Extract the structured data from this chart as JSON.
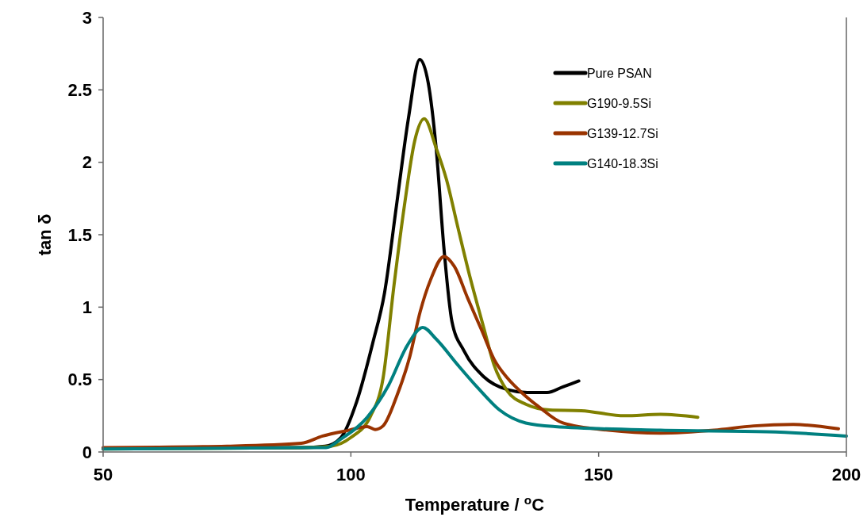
{
  "chart_data": {
    "type": "line",
    "xlabel": "Temperature / $^{o}$C",
    "ylabel": "tan δ",
    "xlim": [
      50,
      200
    ],
    "ylim": [
      0,
      3
    ],
    "xticks": [
      50,
      100,
      150,
      200
    ],
    "yticks": [
      0,
      0.5,
      1,
      1.5,
      2,
      2.5,
      3
    ],
    "grid": false,
    "legend": "top right",
    "marker": "none",
    "line_style": "solid",
    "series": [
      {
        "name": "Pure PSAN",
        "color": "#000000",
        "x": [
          50,
          90,
          94.8,
          98,
          101.2,
          104.4,
          106.8,
          109.2,
          111.6,
          113.9,
          115.6,
          117.2,
          118.8,
          120.4,
          122.8,
          126.8,
          131.6,
          135.6,
          139.6,
          142.8,
          146
        ],
        "values": [
          0.025,
          0.03,
          0.04,
          0.1,
          0.35,
          0.75,
          1.1,
          1.7,
          2.3,
          2.71,
          2.55,
          2.1,
          1.4,
          0.9,
          0.7,
          0.52,
          0.43,
          0.41,
          0.41,
          0.45,
          0.49
        ]
      },
      {
        "name": "G190-9.5Si",
        "color": "#808000",
        "x": [
          50,
          90,
          96,
          100,
          104,
          106.5,
          108.7,
          110.8,
          112.9,
          114.8,
          117.2,
          119.3,
          121.6,
          124.1,
          126.8,
          128.9,
          131.6,
          135.3,
          140.1,
          146.5,
          155.2,
          162.5,
          170
        ],
        "values": [
          0.02,
          0.03,
          0.04,
          0.1,
          0.25,
          0.51,
          1.15,
          1.7,
          2.15,
          2.3,
          2.1,
          1.88,
          1.55,
          1.2,
          0.86,
          0.6,
          0.42,
          0.33,
          0.29,
          0.285,
          0.25,
          0.26,
          0.24
        ]
      },
      {
        "name": "G139-12.7Si",
        "color": "#993300",
        "x": [
          50,
          75,
          90,
          94.3,
          99.6,
          103.3,
          104.9,
          106.5,
          109.2,
          111.9,
          114,
          116.1,
          118.8,
          120.9,
          123.6,
          126.4,
          128.9,
          131.6,
          134.8,
          138,
          142.8,
          152,
          162.5,
          173.3,
          181.3,
          189.3,
          198.4
        ],
        "values": [
          0.03,
          0.04,
          0.06,
          0.11,
          0.15,
          0.175,
          0.155,
          0.18,
          0.38,
          0.66,
          0.97,
          1.19,
          1.35,
          1.28,
          1.06,
          0.84,
          0.64,
          0.51,
          0.4,
          0.31,
          0.2,
          0.15,
          0.13,
          0.15,
          0.18,
          0.19,
          0.16
        ]
      },
      {
        "name": "G140-18.3Si",
        "color": "#008080",
        "x": [
          50,
          90,
          95,
          98,
          103.3,
          107.6,
          111.3,
          114.5,
          117.2,
          121.6,
          125.7,
          130,
          135.3,
          141.2,
          162.5,
          184,
          200
        ],
        "values": [
          0.02,
          0.03,
          0.03,
          0.09,
          0.24,
          0.46,
          0.73,
          0.86,
          0.78,
          0.6,
          0.44,
          0.29,
          0.2,
          0.175,
          0.15,
          0.14,
          0.11
        ]
      }
    ]
  }
}
